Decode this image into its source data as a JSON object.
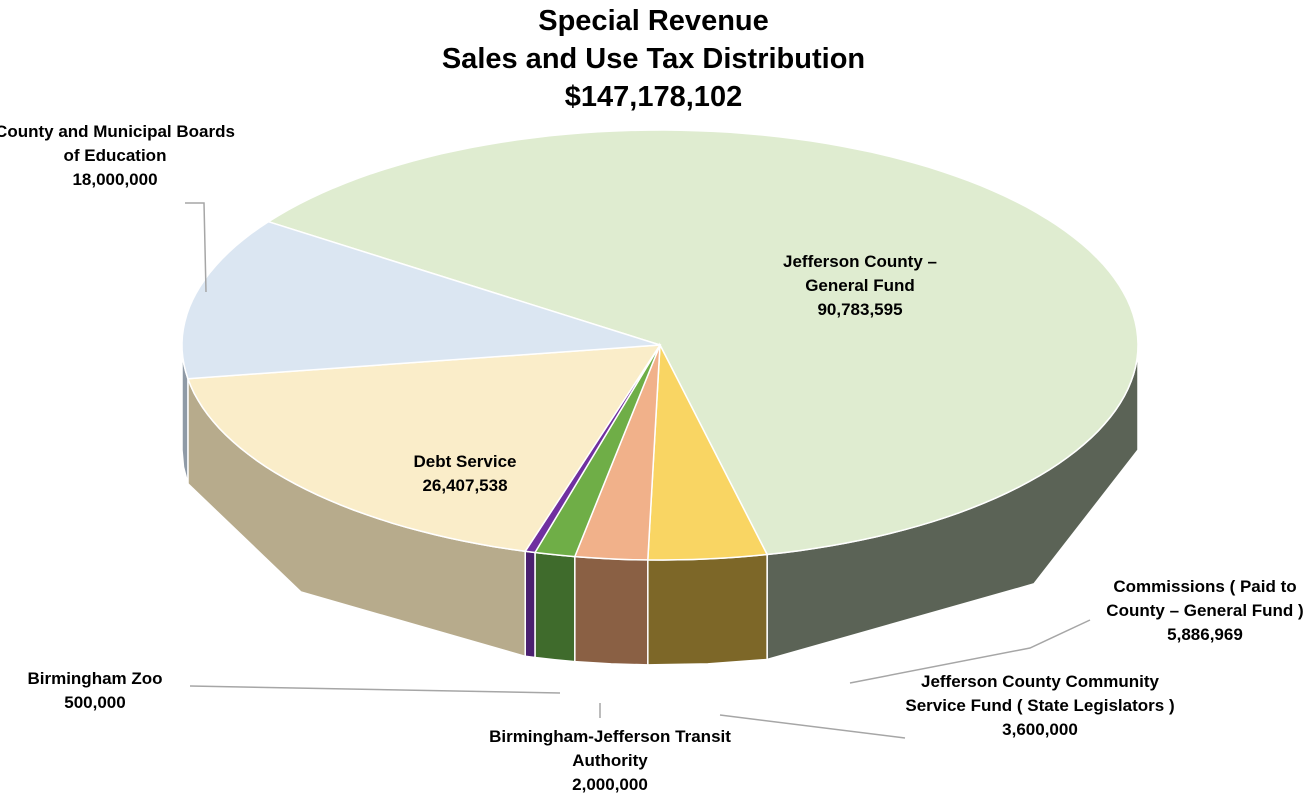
{
  "chart_data": {
    "type": "pie3d",
    "title_lines": [
      "Special Revenue",
      "Sales and Use Tax Distribution",
      "$147,178,102"
    ],
    "categories": [
      "Jefferson County – General Fund",
      "Commissions ( Paid to County – General Fund )",
      "Jefferson County Community Service Fund ( State Legislators )",
      "Birmingham-Jefferson Transit Authority",
      "Birmingham Zoo",
      "Debt Service",
      "County and Municipal Boards of Education"
    ],
    "values": [
      90783595,
      5886969,
      3600000,
      2000000,
      500000,
      26407538,
      18000000
    ],
    "value_labels": [
      "90,783,595",
      "5,886,969",
      "3,600,000",
      "2,000,000",
      "500,000",
      "26,407,538",
      "18,000,000"
    ],
    "colors": [
      "#dfecd0",
      "#f9d563",
      "#f1b18a",
      "#6fae47",
      "#7030a0",
      "#faedc9",
      "#dbe6f2"
    ],
    "side_colors": [
      "#5b6356",
      "#7d6728",
      "#8a6044",
      "#3f6b2c",
      "#4a2070",
      "#b7ab8c",
      "#8f9aa6"
    ]
  }
}
